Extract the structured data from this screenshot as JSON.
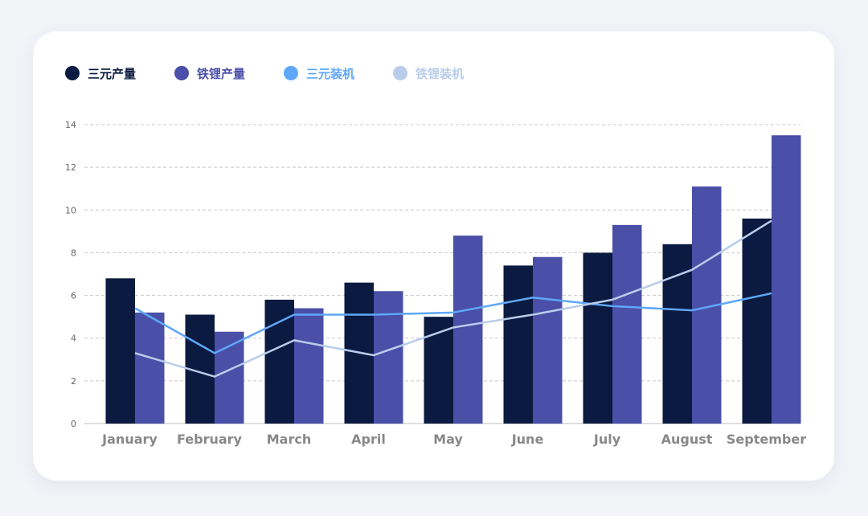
{
  "chart_data": {
    "type": "bar",
    "categories": [
      "January",
      "February",
      "March",
      "April",
      "May",
      "June",
      "July",
      "August",
      "September"
    ],
    "series": [
      {
        "name": "三元产量",
        "type": "bar",
        "color": "#0b1a40",
        "values": [
          6.8,
          5.1,
          5.8,
          6.6,
          5.0,
          7.4,
          8.0,
          8.4,
          9.6
        ]
      },
      {
        "name": "铁锂产量",
        "type": "bar",
        "color": "#4a4fa8",
        "values": [
          5.2,
          4.3,
          5.4,
          6.2,
          8.8,
          7.8,
          9.3,
          11.1,
          13.5
        ]
      },
      {
        "name": "三元装机",
        "type": "line",
        "color": "#5ea7f7",
        "values": [
          5.4,
          3.3,
          5.1,
          5.1,
          5.2,
          5.9,
          5.5,
          5.3,
          6.1
        ]
      },
      {
        "name": "铁锂装机",
        "type": "line",
        "color": "#b9cdeb",
        "values": [
          3.3,
          2.2,
          3.9,
          3.2,
          4.5,
          5.1,
          5.8,
          7.2,
          9.5
        ]
      }
    ],
    "y_ticks": [
      0,
      2,
      4,
      6,
      8,
      10,
      12,
      14
    ],
    "ylim": [
      0,
      14
    ],
    "grid": true,
    "legend": "top-left"
  }
}
